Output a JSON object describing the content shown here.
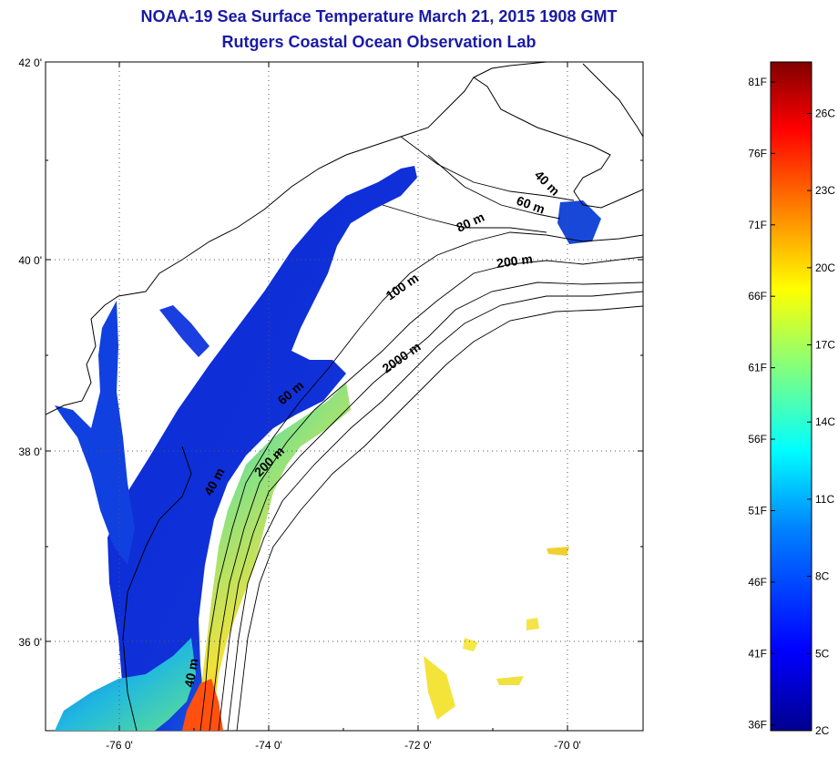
{
  "title": {
    "line1": "NOAA-19 Sea Surface Temperature March 21, 2015 1908 GMT",
    "line2": "Rutgers Coastal Ocean Observation Lab"
  },
  "axes": {
    "lat_labels": [
      {
        "label": "42 0'",
        "value": 42
      },
      {
        "label": "40 0'",
        "value": 40
      },
      {
        "label": "38 0'",
        "value": 38
      },
      {
        "label": "36 0'",
        "value": 36
      }
    ],
    "lon_labels": [
      {
        "label": "-76 0'",
        "value": -76
      },
      {
        "label": "-74 0'",
        "value": -74
      },
      {
        "label": "-72 0'",
        "value": -72
      },
      {
        "label": "-70 0'",
        "value": -70
      }
    ],
    "lon_range": [
      -77.0,
      -69.0
    ],
    "lat_range": [
      35.0,
      42.0
    ],
    "grid": "dotted"
  },
  "isobaths": [
    {
      "label": "40 m"
    },
    {
      "label": "60 m"
    },
    {
      "label": "80 m"
    },
    {
      "label": "200 m"
    },
    {
      "label": "100 m"
    },
    {
      "label": "2000 m"
    },
    {
      "label": "60 m"
    },
    {
      "label": "40 m"
    },
    {
      "label": "200 m"
    },
    {
      "label": "40 m"
    }
  ],
  "colorbar": {
    "fahrenheit": [
      "81F",
      "76F",
      "71F",
      "66F",
      "61F",
      "56F",
      "51F",
      "46F",
      "41F",
      "36F"
    ],
    "celsius": [
      "26C",
      "23C",
      "20C",
      "17C",
      "14C",
      "11C",
      "8C",
      "5C",
      "2C"
    ],
    "min_c": 2,
    "max_c": 28,
    "colors": [
      "#00008f",
      "#0000ff",
      "#0080ff",
      "#00ffff",
      "#80ff80",
      "#ffff00",
      "#ff8000",
      "#ff0000",
      "#800000"
    ]
  }
}
